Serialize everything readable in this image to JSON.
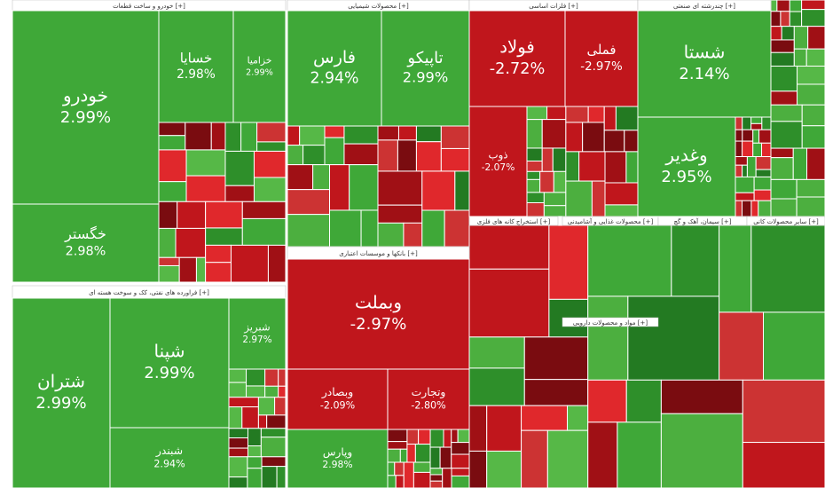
{
  "sectors": [
    {
      "title": "خودرو و ساخت قطعات [+]",
      "tiles": [
        {
          "name": "خودرو",
          "change": "2.99%"
        },
        {
          "name": "خگستر",
          "change": "2.98%"
        },
        {
          "name": "خسایا",
          "change": "2.98%"
        },
        {
          "name": "خزامیا",
          "change": "2.99%"
        }
      ]
    },
    {
      "title": "فراورده های نفتی، کک و سوخت هسته ای [+]",
      "tiles": [
        {
          "name": "شتران",
          "change": "2.99%"
        },
        {
          "name": "شپنا",
          "change": "2.99%"
        },
        {
          "name": "شبندر",
          "change": "2.94%"
        },
        {
          "name": "شبریز",
          "change": "2.97%"
        }
      ]
    },
    {
      "title": "محصولات شیمیایی [+]",
      "tiles": [
        {
          "name": "فارس",
          "change": "2.94%"
        },
        {
          "name": "تاپیکو",
          "change": "2.99%"
        }
      ]
    },
    {
      "title": "بانکها و موسسات اعتباری [+]",
      "tiles": [
        {
          "name": "وبملت",
          "change": "-2.97%"
        },
        {
          "name": "وبصادر",
          "change": "-2.09%"
        },
        {
          "name": "وتجارت",
          "change": "-2.80%"
        },
        {
          "name": "وپارس",
          "change": "2.98%"
        }
      ]
    },
    {
      "title": "فلزات اساسی [+]",
      "tiles": [
        {
          "name": "فولاد",
          "change": "-2.72%"
        },
        {
          "name": "فملی",
          "change": "-2.97%"
        },
        {
          "name": "ذوب",
          "change": "-2.07%"
        }
      ]
    },
    {
      "title": "چندرشته ای صنعتی [+]",
      "tiles": [
        {
          "name": "شستا",
          "change": "2.14%"
        },
        {
          "name": "وغدیر",
          "change": "2.95%"
        }
      ]
    },
    {
      "title": "استخراج کانه های فلزی [+]",
      "tiles": []
    },
    {
      "title": "محصولات غذایی و آشامیدنی [+]",
      "tiles": []
    },
    {
      "title": "سیمان، آهک و گچ [+]",
      "tiles": []
    },
    {
      "title": "سایر محصولات کانی [+]",
      "tiles": []
    },
    {
      "title": "مواد و محصولات دارویی [+]",
      "tiles": []
    }
  ]
}
